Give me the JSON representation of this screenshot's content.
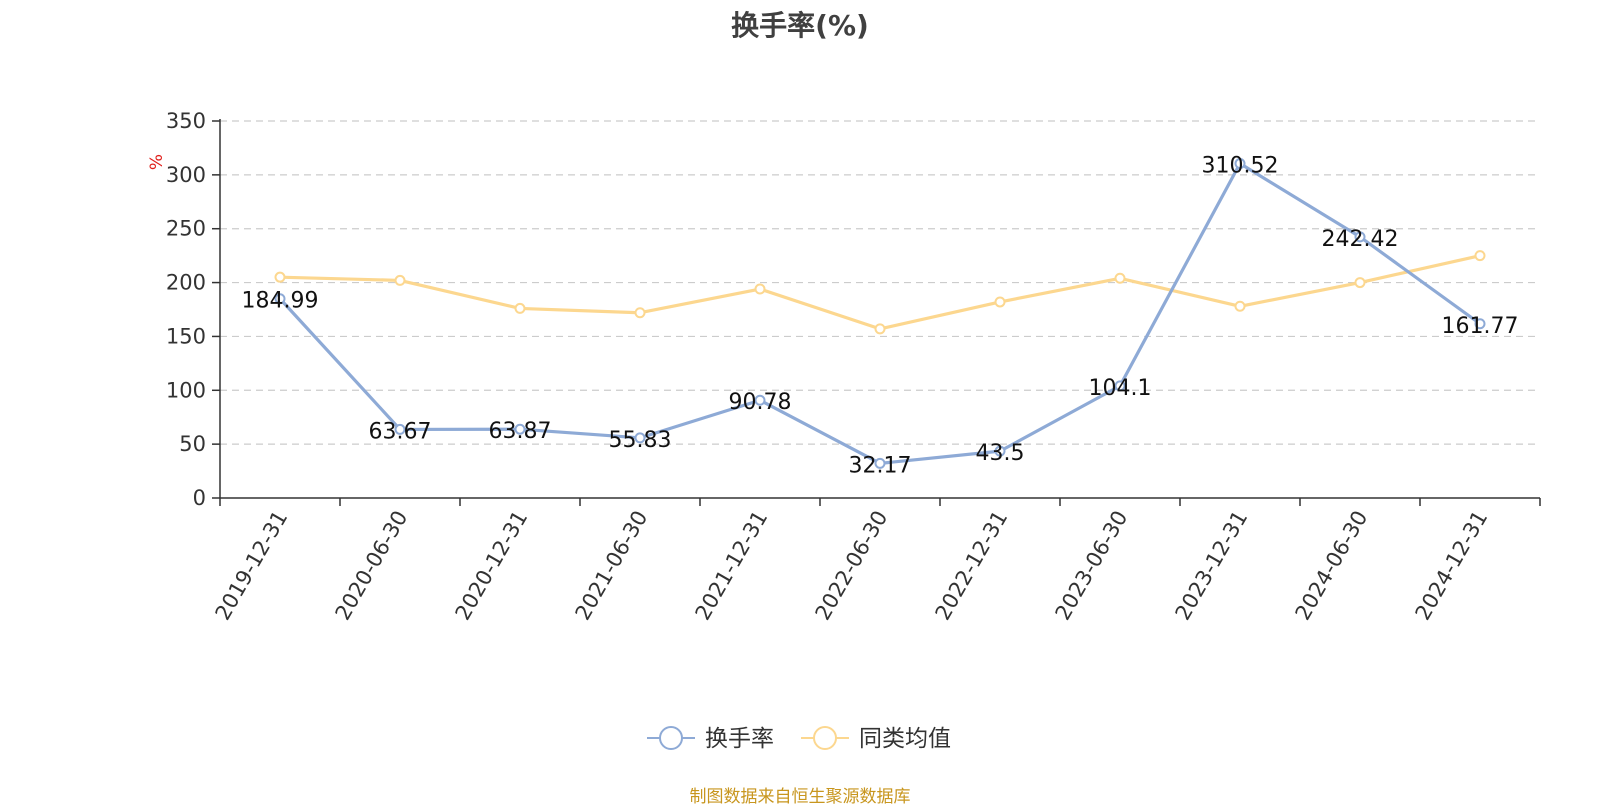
{
  "chart_data": {
    "type": "line",
    "title": "换手率(%)",
    "ylabel": "%",
    "xlabel": "",
    "categories": [
      "2019-12-31",
      "2020-06-30",
      "2020-12-31",
      "2021-06-30",
      "2021-12-31",
      "2022-06-30",
      "2022-12-31",
      "2023-06-30",
      "2023-12-31",
      "2024-06-30",
      "2024-12-31"
    ],
    "ylim": [
      0,
      350
    ],
    "yticks": [
      0,
      50,
      100,
      150,
      200,
      250,
      300,
      350
    ],
    "grid": true,
    "legend_position": "bottom-center",
    "series": [
      {
        "name": "换手率",
        "color": "#8eaad6",
        "values": [
          184.99,
          63.67,
          63.87,
          55.83,
          90.78,
          32.17,
          43.5,
          104.1,
          310.52,
          242.42,
          161.77
        ],
        "labels": [
          "184.99",
          "63.67",
          "63.87",
          "55.83",
          "90.78",
          "32.17",
          "43.5",
          "104.1",
          "310.52",
          "242.42",
          "161.77"
        ]
      },
      {
        "name": "同类均值",
        "color": "#fcd78f",
        "values": [
          205,
          202,
          176,
          172,
          194,
          157,
          182,
          204,
          178,
          200,
          225
        ]
      }
    ]
  },
  "source_note": "制图数据来自恒生聚源数据库",
  "colors": {
    "axis": "#333333",
    "grid": "#cccccc",
    "unit_label": "#e0201c",
    "source": "#c8961e"
  }
}
